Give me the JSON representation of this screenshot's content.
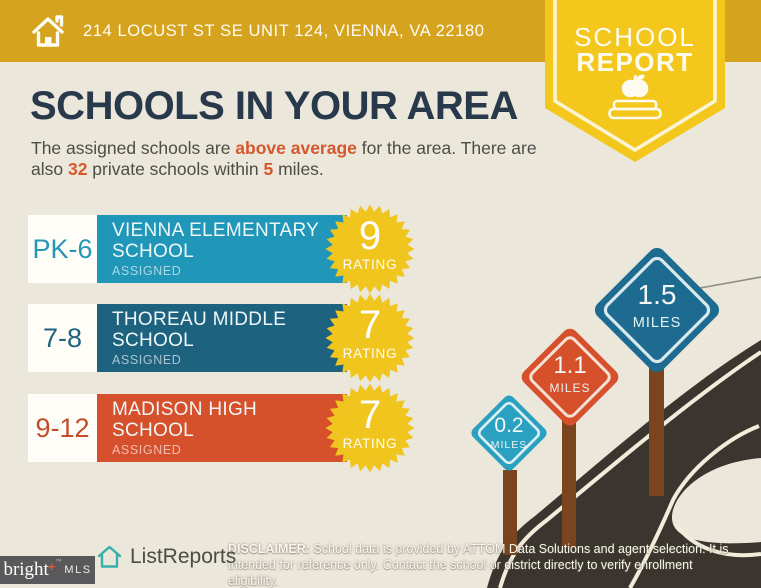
{
  "header": {
    "address": "214 LOCUST ST SE UNIT 124, VIENNA, VA 22180",
    "badge_line1": "SCHOOL",
    "badge_line2": "REPORT"
  },
  "title": "SCHOOLS IN YOUR AREA",
  "subtitle": {
    "p1": "The assigned schools are ",
    "h1": "above average",
    "p2": " for the area. There are",
    "p3": "also ",
    "h2": "32",
    "p4": " private schools within ",
    "h3": "5",
    "p5": " miles."
  },
  "labels": {
    "rating": "RATING"
  },
  "schools": [
    {
      "grades": "PK-6",
      "name": "VIENNA ELEMENTARY SCHOOL",
      "status": "ASSIGNED",
      "rating": "9",
      "bar_color": "#2097b9"
    },
    {
      "grades": "7-8",
      "name": "THOREAU MIDDLE SCHOOL",
      "status": "ASSIGNED",
      "rating": "7",
      "bar_color": "#1d6380"
    },
    {
      "grades": "9-12",
      "name": "MADISON HIGH SCHOOL",
      "status": "ASSIGNED",
      "rating": "7",
      "bar_color": "#d6502c"
    }
  ],
  "signs": [
    {
      "distance": "0.2",
      "unit": "MILES",
      "color": "#2ba1c1"
    },
    {
      "distance": "1.1",
      "unit": "MILES",
      "color": "#d6502c"
    },
    {
      "distance": "1.5",
      "unit": "MILES",
      "color": "#1e6b91"
    }
  ],
  "footer": {
    "brand": "ListReports",
    "mls_name": "bright",
    "mls_tm": "™",
    "mls_plus": "+",
    "mls_suffix": "MLS",
    "disclaimer_label": "DISCLAIMER:",
    "disclaimer_text": " School data is provided by ATTOM Data Solutions and agent selection. It is intended for reference only. Contact the school or district directly to verify enrollment eligibility."
  },
  "colors": {
    "top_bar_gold": "#d5a31d",
    "badge_yellow": "#f3c71c",
    "burst_yellow": "#f0c51e",
    "background_beige": "#ece7db",
    "title_navy": "#28394b",
    "accent_orange": "#d4572e",
    "road_dark": "#3a362f",
    "road_line_cream": "#f2edda",
    "post_brown": "#7a441e",
    "logo_teal": "#35b0ab"
  }
}
